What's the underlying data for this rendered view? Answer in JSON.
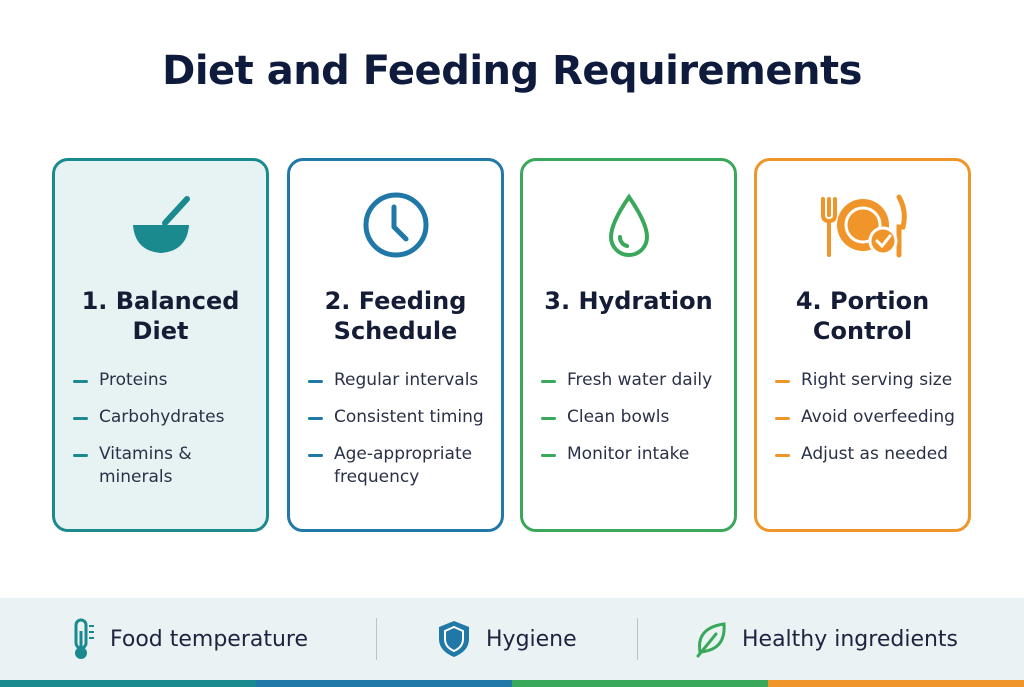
{
  "title": "Diet and Feeding Requirements",
  "cards": [
    {
      "title": "1. Balanced Diet",
      "items": [
        "Proteins",
        "Carbohydrates",
        "Vitamins & minerals"
      ]
    },
    {
      "title": "2. Feeding Schedule",
      "items": [
        "Regular intervals",
        "Consistent timing",
        "Age-appropriate frequency"
      ]
    },
    {
      "title": "3. Hydration",
      "items": [
        "Fresh water daily",
        "Clean bowls",
        "Monitor intake"
      ]
    },
    {
      "title": "4. Portion Control",
      "items": [
        "Right serving size",
        "Avoid overfeeding",
        "Adjust as needed"
      ]
    }
  ],
  "footer": [
    "Food temperature",
    "Hygiene",
    "Healthy ingredients"
  ]
}
